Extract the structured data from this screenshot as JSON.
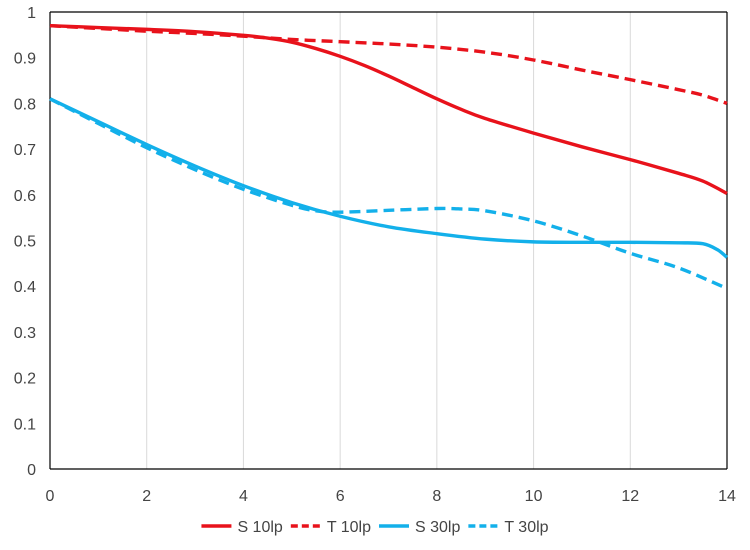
{
  "chart_data": {
    "type": "line",
    "title": "",
    "xlabel": "",
    "ylabel": "",
    "xlim": [
      0,
      14
    ],
    "ylim": [
      0,
      1
    ],
    "x_ticks": [
      "0",
      "2",
      "4",
      "6",
      "8",
      "10",
      "12",
      "14"
    ],
    "y_ticks": [
      "0",
      "0.1",
      "0.2",
      "0.3",
      "0.4",
      "0.5",
      "0.6",
      "0.7",
      "0.8",
      "0.9",
      "1"
    ],
    "grid": "vertical",
    "legend_position": "bottom",
    "series": [
      {
        "name": "S 10lp",
        "color": "#e8121b",
        "dash": "solid",
        "x": [
          0,
          1,
          2,
          3,
          4,
          4.5,
          5,
          5.5,
          6,
          6.5,
          7,
          7.5,
          8,
          8.5,
          9,
          10,
          11,
          12,
          13,
          13.5,
          14
        ],
        "y": [
          0.97,
          0.966,
          0.962,
          0.957,
          0.949,
          0.943,
          0.934,
          0.92,
          0.903,
          0.883,
          0.86,
          0.835,
          0.81,
          0.787,
          0.767,
          0.735,
          0.705,
          0.677,
          0.647,
          0.63,
          0.603
        ]
      },
      {
        "name": "T 10lp",
        "color": "#e8121b",
        "dash": "dashed",
        "x": [
          0,
          1,
          2,
          3,
          4,
          5,
          6,
          7,
          8,
          9,
          10,
          11,
          12,
          13,
          13.5,
          14
        ],
        "y": [
          0.97,
          0.964,
          0.958,
          0.953,
          0.947,
          0.94,
          0.935,
          0.93,
          0.923,
          0.912,
          0.895,
          0.873,
          0.852,
          0.83,
          0.818,
          0.8
        ]
      },
      {
        "name": "S 30lp",
        "color": "#13b0ea",
        "dash": "solid",
        "x": [
          0,
          1,
          2,
          3,
          4,
          5,
          6,
          7,
          8,
          9,
          10,
          11,
          12,
          13,
          13.5,
          13.8,
          14
        ],
        "y": [
          0.81,
          0.76,
          0.71,
          0.663,
          0.62,
          0.583,
          0.553,
          0.53,
          0.515,
          0.503,
          0.497,
          0.496,
          0.496,
          0.495,
          0.493,
          0.48,
          0.463
        ]
      },
      {
        "name": "T 30lp",
        "color": "#13b0ea",
        "dash": "dashed",
        "x": [
          0,
          1,
          2,
          3,
          4,
          5,
          5.5,
          6,
          7,
          8,
          8.5,
          9,
          10,
          11,
          12,
          13,
          14
        ],
        "y": [
          0.81,
          0.756,
          0.703,
          0.655,
          0.612,
          0.577,
          0.565,
          0.562,
          0.566,
          0.57,
          0.569,
          0.565,
          0.543,
          0.51,
          0.472,
          0.44,
          0.395
        ]
      }
    ]
  }
}
